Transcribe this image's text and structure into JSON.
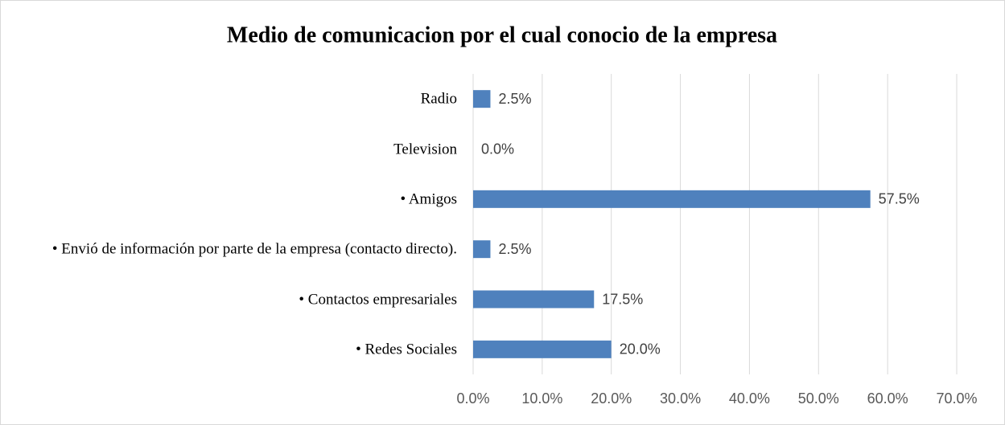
{
  "chart_data": {
    "type": "bar",
    "orientation": "horizontal",
    "title": "Medio de comunicacion por el cual conocio de la empresa",
    "categories": [
      "Radio",
      "Television",
      "• Amigos",
      "• Envió de información por parte de la empresa (contacto directo).",
      "• Contactos empresariales",
      "• Redes Sociales"
    ],
    "values": [
      2.5,
      0,
      57.5,
      2.5,
      17.5,
      20
    ],
    "value_labels": [
      "2.5%",
      "0.0%",
      "57.5%",
      "2.5%",
      "17.5%",
      "20.0%"
    ],
    "color": "#4f81bd",
    "xlim": [
      0,
      70
    ],
    "xticks": [
      {
        "value": 0,
        "label": "0.0%"
      },
      {
        "value": 10,
        "label": "10.0%"
      },
      {
        "value": 20,
        "label": "20.0%"
      },
      {
        "value": 30,
        "label": "30.0%"
      },
      {
        "value": 40,
        "label": "40.0%"
      },
      {
        "value": 50,
        "label": "50.0%"
      },
      {
        "value": 60,
        "label": "60.0%"
      },
      {
        "value": 70,
        "label": "70.0%"
      }
    ],
    "grid": true
  }
}
